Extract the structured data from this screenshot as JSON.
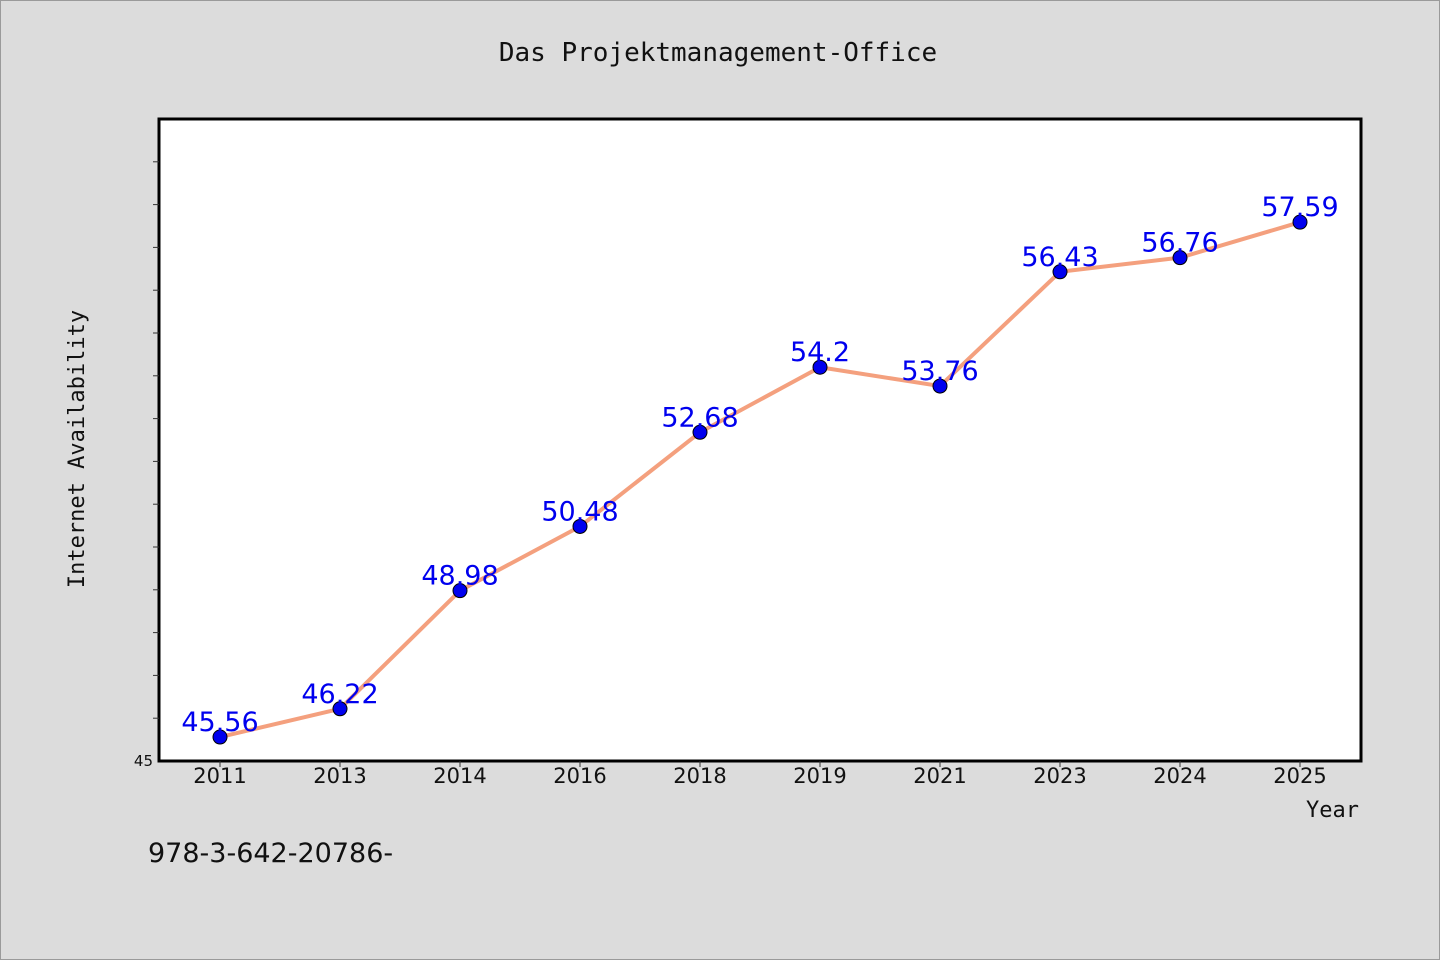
{
  "chart_data": {
    "type": "line",
    "title": "Das Projektmanagement-Office",
    "xlabel": "Year",
    "ylabel": "Internet Availability",
    "categories": [
      "2011",
      "2013",
      "2014",
      "2016",
      "2018",
      "2019",
      "2021",
      "2023",
      "2024",
      "2025"
    ],
    "series": [
      {
        "values": [
          45.56,
          46.22,
          48.98,
          50.48,
          52.68,
          54.2,
          53.76,
          56.43,
          56.76,
          57.59
        ]
      }
    ],
    "data_labels": [
      "45.56",
      "46.22",
      "48.98",
      "50.48",
      "52.68",
      "54.2",
      "53.76",
      "56.43",
      "56.76",
      "57.59"
    ],
    "y_tick_label": "45",
    "ylim": [
      45,
      60
    ],
    "grid": false,
    "legend": "none",
    "line_color": "#f4a07e",
    "marker_color": "#0000ee",
    "label_color": "#0000ee"
  },
  "footer": {
    "text": "978-3-642-20786-"
  }
}
